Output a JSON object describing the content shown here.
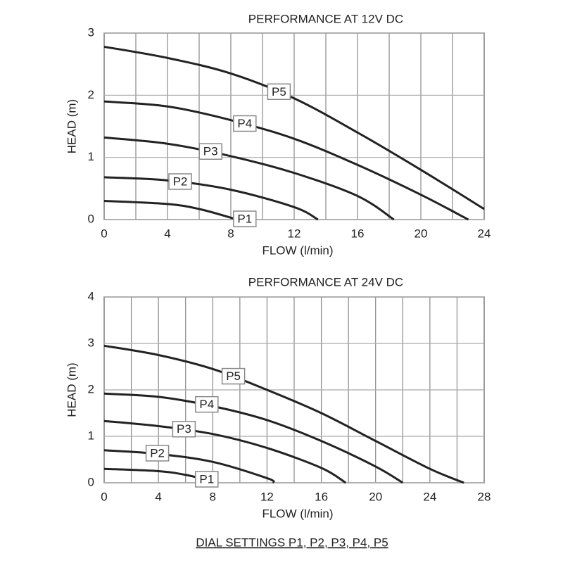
{
  "chart_data": [
    {
      "type": "line",
      "title": "PERFORMANCE AT 12V DC",
      "xlabel": "FLOW (l/min)",
      "ylabel": "HEAD (m)",
      "xlim": [
        0,
        24
      ],
      "xticks": [
        0,
        4,
        8,
        12,
        16,
        20,
        24
      ],
      "ylim": [
        0,
        3
      ],
      "yticks": [
        0,
        1,
        2,
        3
      ],
      "grid": true,
      "series": [
        {
          "name": "P1",
          "color": "#222222",
          "x": [
            0,
            4,
            6,
            8,
            8.3
          ],
          "values": [
            0.3,
            0.25,
            0.17,
            0.03,
            0
          ]
        },
        {
          "name": "P2",
          "color": "#222222",
          "x": [
            0,
            4,
            8,
            12,
            13.5
          ],
          "values": [
            0.68,
            0.63,
            0.48,
            0.2,
            0
          ]
        },
        {
          "name": "P3",
          "color": "#222222",
          "x": [
            0,
            4,
            8,
            12,
            16,
            18.3
          ],
          "values": [
            1.32,
            1.22,
            1.02,
            0.75,
            0.38,
            0
          ]
        },
        {
          "name": "P4",
          "color": "#222222",
          "x": [
            0,
            4,
            8,
            12,
            16,
            20,
            23
          ],
          "values": [
            1.9,
            1.82,
            1.6,
            1.3,
            0.88,
            0.4,
            0
          ]
        },
        {
          "name": "P5",
          "color": "#222222",
          "x": [
            0,
            4,
            8,
            12,
            16,
            20,
            24
          ],
          "values": [
            2.78,
            2.6,
            2.35,
            1.95,
            1.4,
            0.8,
            0.17
          ]
        }
      ]
    },
    {
      "type": "line",
      "title": "PERFORMANCE AT 24V DC",
      "xlabel": "FLOW (l/min)",
      "ylabel": "HEAD (m)",
      "xlim": [
        0,
        28
      ],
      "xticks": [
        0,
        4,
        8,
        12,
        16,
        20,
        24,
        28
      ],
      "ylim": [
        0,
        4
      ],
      "yticks": [
        0,
        1,
        2,
        3,
        4
      ],
      "grid": true,
      "series": [
        {
          "name": "P1",
          "color": "#222222",
          "x": [
            0,
            4,
            6,
            8,
            8.3
          ],
          "values": [
            0.3,
            0.25,
            0.17,
            0.03,
            0
          ]
        },
        {
          "name": "P2",
          "color": "#222222",
          "x": [
            0,
            4,
            8,
            12,
            12.5
          ],
          "values": [
            0.7,
            0.62,
            0.45,
            0.1,
            0
          ]
        },
        {
          "name": "P3",
          "color": "#222222",
          "x": [
            0,
            4,
            8,
            12,
            16,
            17.8
          ],
          "values": [
            1.33,
            1.22,
            1.05,
            0.75,
            0.32,
            0
          ]
        },
        {
          "name": "P4",
          "color": "#222222",
          "x": [
            0,
            4,
            8,
            12,
            16,
            20,
            22
          ],
          "values": [
            1.92,
            1.85,
            1.65,
            1.35,
            0.9,
            0.35,
            0
          ]
        },
        {
          "name": "P5",
          "color": "#222222",
          "x": [
            0,
            4,
            8,
            12,
            16,
            20,
            24,
            26.5
          ],
          "values": [
            2.95,
            2.75,
            2.45,
            2.0,
            1.5,
            0.9,
            0.3,
            0
          ]
        }
      ]
    }
  ],
  "caption": "DIAL SETTINGS P1, P2, P3, P4, P5"
}
